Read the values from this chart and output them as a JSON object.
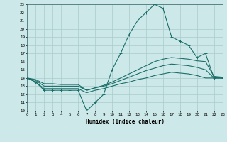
{
  "xlabel": "Humidex (Indice chaleur)",
  "bg_color": "#cce8e8",
  "grid_color": "#aacccc",
  "line_color": "#1a6e6a",
  "xlim": [
    0,
    23
  ],
  "ylim": [
    10,
    23
  ],
  "xticks": [
    0,
    1,
    2,
    3,
    4,
    5,
    6,
    7,
    8,
    9,
    10,
    11,
    12,
    13,
    14,
    15,
    16,
    17,
    18,
    19,
    20,
    21,
    22,
    23
  ],
  "yticks": [
    10,
    11,
    12,
    13,
    14,
    15,
    16,
    17,
    18,
    19,
    20,
    21,
    22,
    23
  ],
  "series": [
    {
      "x": [
        0,
        1,
        2,
        3,
        4,
        5,
        6,
        7,
        8,
        9,
        10,
        11,
        12,
        13,
        14,
        15,
        16,
        17,
        18,
        19,
        20,
        21,
        22,
        23
      ],
      "y": [
        14,
        13.5,
        12.5,
        12.5,
        12.5,
        12.5,
        12.5,
        10,
        11,
        12,
        15,
        17,
        19.3,
        21,
        22,
        23,
        22.5,
        19,
        18.5,
        18,
        16.5,
        17,
        14,
        14
      ],
      "marker": true
    },
    {
      "x": [
        0,
        1,
        2,
        3,
        4,
        5,
        6,
        7,
        8,
        9,
        10,
        11,
        12,
        13,
        14,
        15,
        16,
        17,
        18,
        19,
        20,
        21,
        22,
        23
      ],
      "y": [
        14,
        13.8,
        13.3,
        13.3,
        13.2,
        13.2,
        13.2,
        12.5,
        12.8,
        13.1,
        13.5,
        14.0,
        14.5,
        15.0,
        15.5,
        16.0,
        16.3,
        16.5,
        16.4,
        16.3,
        16.1,
        16.0,
        14.2,
        14.1
      ],
      "marker": false
    },
    {
      "x": [
        0,
        1,
        2,
        3,
        4,
        5,
        6,
        7,
        8,
        9,
        10,
        11,
        12,
        13,
        14,
        15,
        16,
        17,
        18,
        19,
        20,
        21,
        22,
        23
      ],
      "y": [
        14,
        13.7,
        13.0,
        13.0,
        13.0,
        13.0,
        13.0,
        12.5,
        12.8,
        13.0,
        13.3,
        13.7,
        14.1,
        14.5,
        14.9,
        15.2,
        15.5,
        15.7,
        15.6,
        15.5,
        15.3,
        15.0,
        14.0,
        14.0
      ],
      "marker": false
    },
    {
      "x": [
        0,
        1,
        2,
        3,
        4,
        5,
        6,
        7,
        8,
        9,
        10,
        11,
        12,
        13,
        14,
        15,
        16,
        17,
        18,
        19,
        20,
        21,
        22,
        23
      ],
      "y": [
        14,
        13.5,
        12.7,
        12.7,
        12.7,
        12.7,
        12.7,
        12.2,
        12.5,
        12.7,
        13.0,
        13.3,
        13.5,
        13.8,
        14.0,
        14.3,
        14.5,
        14.7,
        14.6,
        14.5,
        14.3,
        14.0,
        14.0,
        14.0
      ],
      "marker": false
    }
  ]
}
